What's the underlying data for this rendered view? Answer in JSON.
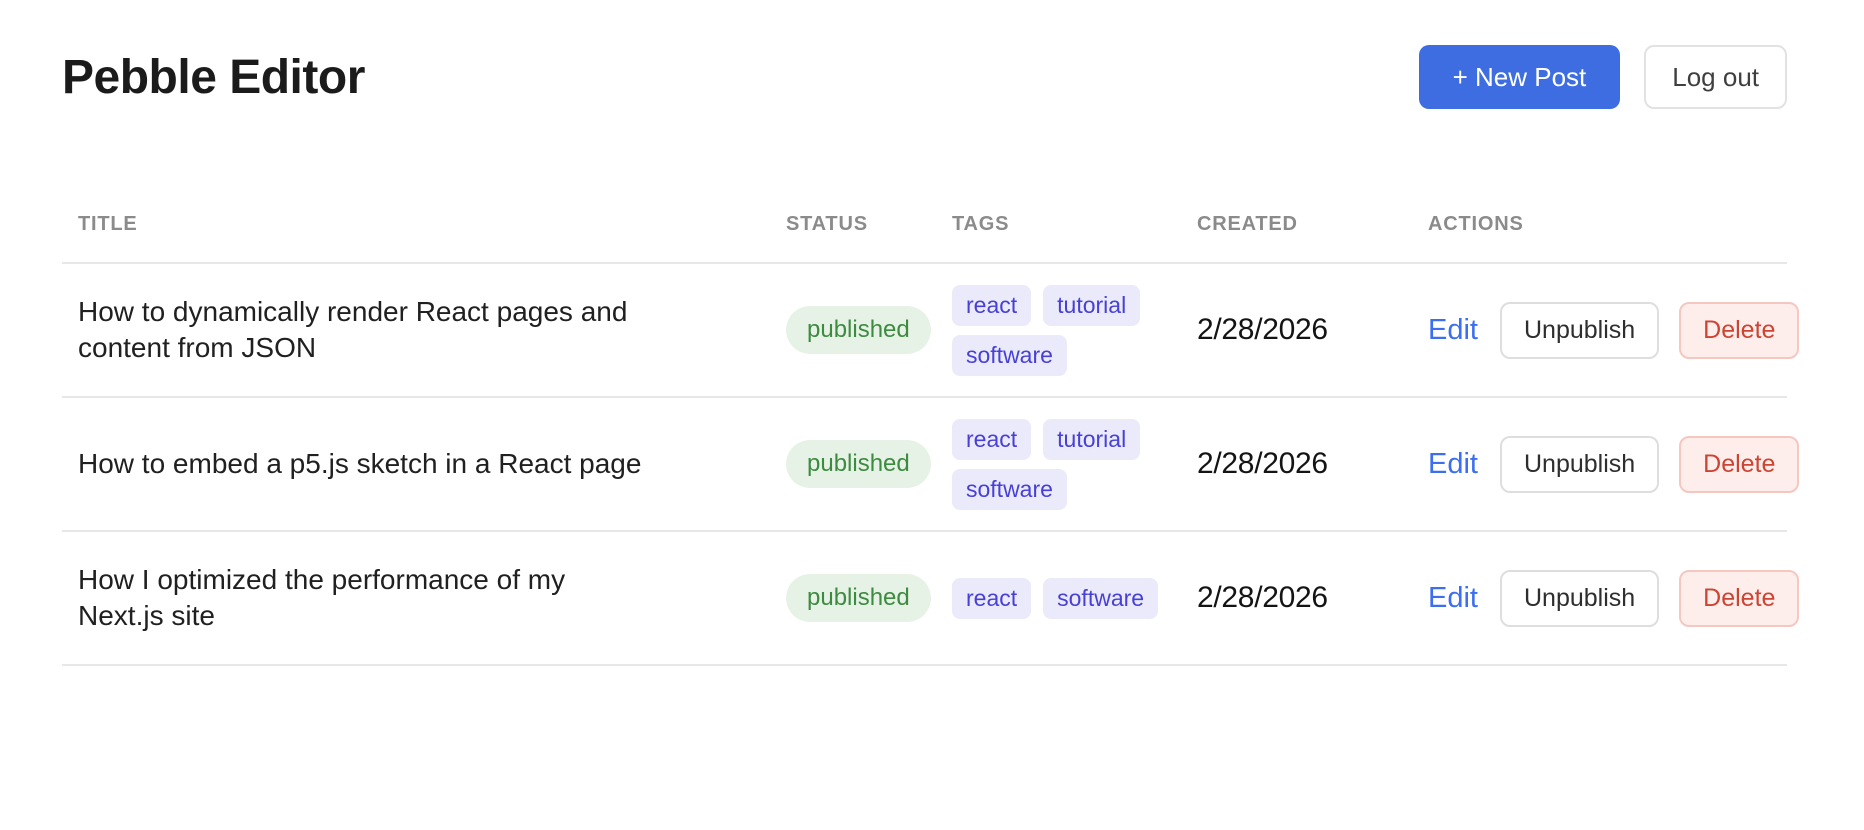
{
  "app": {
    "title": "Pebble Editor"
  },
  "header": {
    "new_post_label": "+ New Post",
    "logout_label": "Log out"
  },
  "table": {
    "columns": [
      "Title",
      "Status",
      "Tags",
      "Created",
      "Actions"
    ],
    "rows": [
      {
        "title": "How to dynamically render React pages and content from JSON",
        "status": "published",
        "tags": [
          "react",
          "tutorial",
          "software"
        ],
        "created": "2/28/2026",
        "actions": {
          "edit": "Edit",
          "unpublish": "Unpublish",
          "delete": "Delete"
        }
      },
      {
        "title": "How to embed a p5.js sketch in a React page",
        "status": "published",
        "tags": [
          "react",
          "tutorial",
          "software"
        ],
        "created": "2/28/2026",
        "actions": {
          "edit": "Edit",
          "unpublish": "Unpublish",
          "delete": "Delete"
        }
      },
      {
        "title": "How I optimized the performance of my Next.js site",
        "status": "published",
        "tags": [
          "react",
          "software"
        ],
        "created": "2/28/2026",
        "actions": {
          "edit": "Edit",
          "unpublish": "Unpublish",
          "delete": "Delete"
        }
      }
    ]
  },
  "colors": {
    "primary_button": "#3e6de2",
    "edit_link": "#3b6ff0",
    "published_text": "#3d8b40",
    "published_bg": "#e7f2e6",
    "tag_text": "#4840d6",
    "tag_bg": "#eaeafb",
    "delete_text": "#cd4433",
    "delete_bg": "#fdeeeb",
    "delete_border": "#f4c8c0",
    "divider": "#e7e7e7"
  }
}
